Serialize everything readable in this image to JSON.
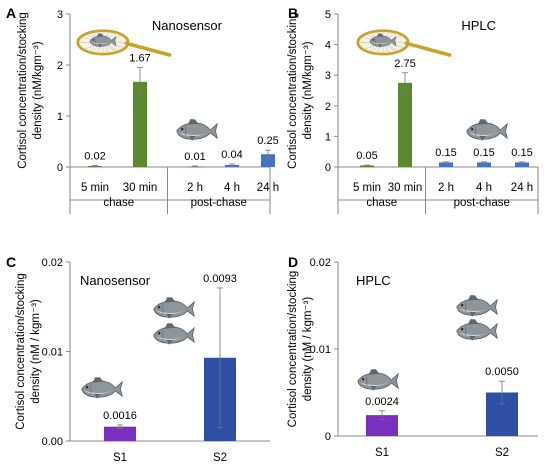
{
  "chart_data": [
    {
      "panel": "A",
      "type": "bar",
      "title": "Nanosensor",
      "ylabel": "Cortisol concentration/stocking density (nM/kgm⁻³)",
      "ylabel_lines": [
        "Cortisol concentration/stocking",
        "density (nM/kgm⁻³)"
      ],
      "ylim": [
        0,
        3
      ],
      "yticks": [
        "0",
        "1",
        "2",
        "3"
      ],
      "categories": [
        "5 min",
        "30 min",
        "2 h",
        "4 h",
        "24 h"
      ],
      "groups": [
        {
          "label": "chase",
          "count": 2
        },
        {
          "label": "post-chase",
          "count": 3
        }
      ],
      "values": [
        0.02,
        1.67,
        0.01,
        0.04,
        0.25
      ],
      "errors": [
        0.01,
        0.28,
        0.01,
        0.02,
        0.08
      ],
      "value_labels": [
        "0.02",
        "1.67",
        "0.01",
        "0.04",
        "0.25"
      ],
      "colors": [
        "#5b8a2e",
        "#5b8a2e",
        "#4472c4",
        "#4472c4",
        "#4472c4"
      ]
    },
    {
      "panel": "B",
      "type": "bar",
      "title": "HPLC",
      "ylabel": "Cortisol concentration/stocking density (nM/kgm⁻³)",
      "ylabel_lines": [
        "Cortisol concentration/stocking",
        "density (nM/kgm⁻³)"
      ],
      "ylim": [
        0,
        5
      ],
      "yticks": [
        "0",
        "1",
        "2",
        "3",
        "4",
        "5"
      ],
      "categories": [
        "5 min",
        "30 min",
        "2 h",
        "4 h",
        "24 h"
      ],
      "groups": [
        {
          "label": "chase",
          "count": 2
        },
        {
          "label": "post-chase",
          "count": 3
        }
      ],
      "values": [
        0.05,
        2.75,
        0.15,
        0.15,
        0.15
      ],
      "errors": [
        0.01,
        0.33,
        0.02,
        0.02,
        0.02
      ],
      "value_labels": [
        "0.05",
        "2.75",
        "0.15",
        "0.15",
        "0.15"
      ],
      "colors": [
        "#5b8a2e",
        "#5b8a2e",
        "#4472c4",
        "#4472c4",
        "#4472c4"
      ]
    },
    {
      "panel": "C",
      "type": "bar",
      "title": "Nanosensor",
      "ylabel": "Cortisol concentration/stocking density (nM / kgm⁻³)",
      "ylabel_lines": [
        "Cortisol concentration/stocking",
        "density (nM / kgm⁻³)"
      ],
      "ylim": [
        0,
        0.02
      ],
      "yticks": [
        "0.00",
        "0.01",
        "0.02"
      ],
      "categories": [
        "S1",
        "S2"
      ],
      "values": [
        0.0016,
        0.0093
      ],
      "errors": [
        0.0002,
        0.0078
      ],
      "value_labels": [
        "0.0016",
        "0.0093"
      ],
      "colors": [
        "#7b2fbf",
        "#2e4fa3"
      ]
    },
    {
      "panel": "D",
      "type": "bar",
      "title": "HPLC",
      "ylabel": "Cortisol concentration/stocking density (nM / kgm⁻³)",
      "ylabel_lines": [
        "Cortisol concentration/stocking",
        "density (nM / kgm⁻³)"
      ],
      "ylim": [
        0,
        0.02
      ],
      "yticks": [
        "0",
        "0.01",
        "0.02"
      ],
      "categories": [
        "S1",
        "S2"
      ],
      "values": [
        0.0024,
        0.005
      ],
      "errors": [
        0.0005,
        0.0013
      ],
      "value_labels": [
        "0.0024",
        "0.0050"
      ],
      "colors": [
        "#7b2fbf",
        "#2e4fa3"
      ]
    }
  ],
  "icons": {
    "net": "fish-in-net-icon",
    "fish": "fish-icon",
    "fish_colors": {
      "body": "#8e969c",
      "belly": "#dfe3e5",
      "fin": "#5f676d",
      "net_rim": "#c9a227"
    }
  }
}
